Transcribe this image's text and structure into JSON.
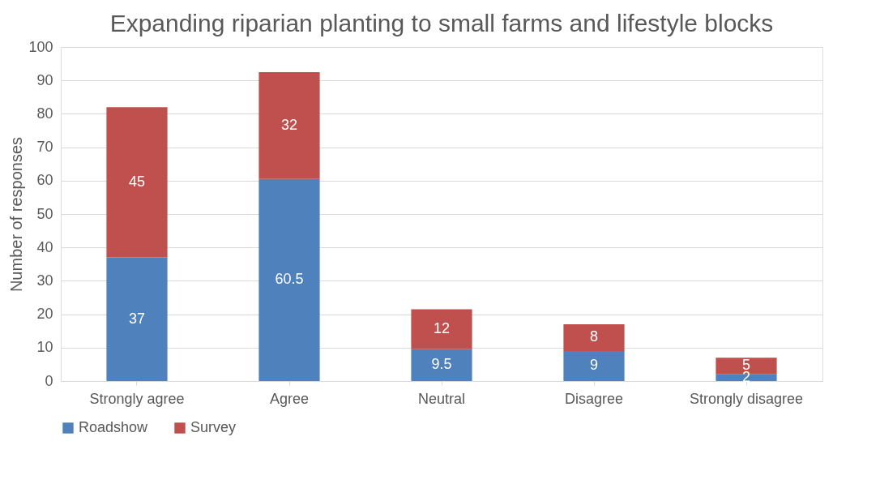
{
  "chart_data": {
    "type": "bar",
    "stacked": true,
    "title": "Expanding riparian planting to small farms and lifestyle blocks",
    "ylabel": "Number of responses",
    "categories": [
      "Strongly agree",
      "Agree",
      "Neutral",
      "Disagree",
      "Strongly disagree"
    ],
    "series": [
      {
        "name": "Roadshow",
        "color": "#4f81bd",
        "values": [
          37,
          60.5,
          9.5,
          9,
          2
        ]
      },
      {
        "name": "Survey",
        "color": "#c0504d",
        "values": [
          45,
          32,
          12,
          8,
          5
        ]
      }
    ],
    "ylim": [
      0,
      100
    ],
    "yticks": [
      0,
      10,
      20,
      30,
      40,
      50,
      60,
      70,
      80,
      90,
      100
    ],
    "grid": "y",
    "legend": "bottom",
    "data_labels": true
  }
}
